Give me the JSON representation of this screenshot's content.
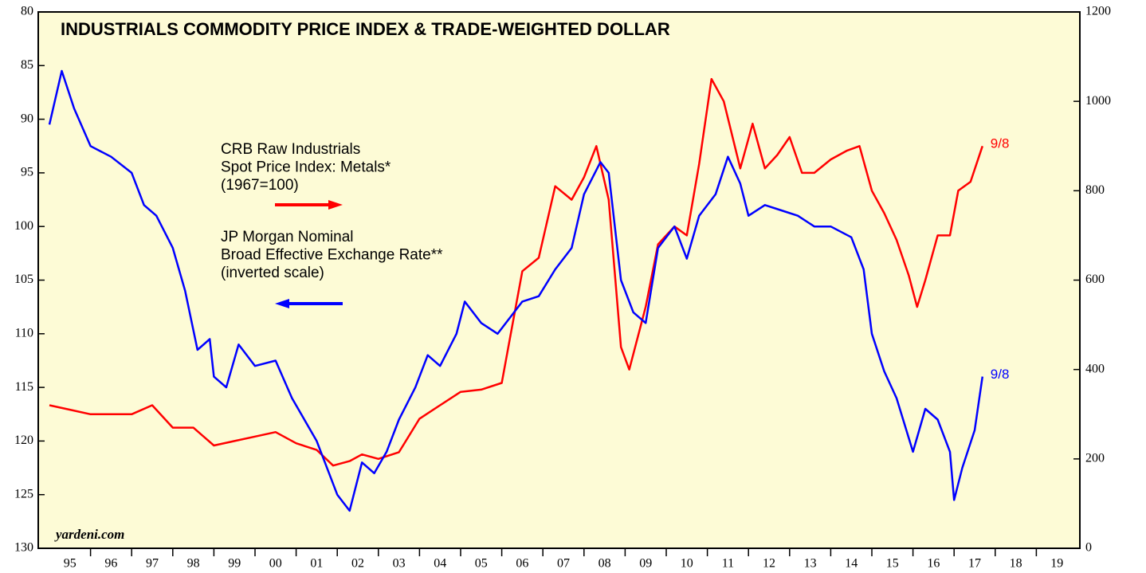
{
  "chart_data": {
    "type": "line",
    "title": "INDUSTRIALS COMMODITY PRICE INDEX & TRADE-WEIGHTED DOLLAR",
    "source": "yardeni.com",
    "xlim": [
      1995,
      2020
    ],
    "xticks": [
      {
        "value": 1995,
        "label": "95"
      },
      {
        "value": 1996,
        "label": "96"
      },
      {
        "value": 1997,
        "label": "97"
      },
      {
        "value": 1998,
        "label": "98"
      },
      {
        "value": 1999,
        "label": "99"
      },
      {
        "value": 2000,
        "label": "00"
      },
      {
        "value": 2001,
        "label": "01"
      },
      {
        "value": 2002,
        "label": "02"
      },
      {
        "value": 2003,
        "label": "03"
      },
      {
        "value": 2004,
        "label": "04"
      },
      {
        "value": 2005,
        "label": "05"
      },
      {
        "value": 2006,
        "label": "06"
      },
      {
        "value": 2007,
        "label": "07"
      },
      {
        "value": 2008,
        "label": "08"
      },
      {
        "value": 2009,
        "label": "09"
      },
      {
        "value": 2010,
        "label": "10"
      },
      {
        "value": 2011,
        "label": "11"
      },
      {
        "value": 2012,
        "label": "12"
      },
      {
        "value": 2013,
        "label": "13"
      },
      {
        "value": 2014,
        "label": "14"
      },
      {
        "value": 2015,
        "label": "15"
      },
      {
        "value": 2016,
        "label": "16"
      },
      {
        "value": 2017,
        "label": "17"
      },
      {
        "value": 2018,
        "label": "18"
      },
      {
        "value": 2019,
        "label": "19"
      }
    ],
    "ylim": [
      130,
      80
    ],
    "yticks": [
      80,
      85,
      90,
      95,
      100,
      105,
      110,
      115,
      120,
      125,
      130
    ],
    "y_inverted": true,
    "y2lim": [
      0,
      1200
    ],
    "y2ticks": [
      0,
      200,
      400,
      600,
      800,
      1000,
      1200
    ],
    "series": [
      {
        "label": [
          "CRB Raw Industrials",
          "Spot Price Index: Metals*",
          "(1967=100)"
        ],
        "color": "#ff0000",
        "axis": "y2",
        "end_label": "9/8",
        "x": [
          1995.0,
          1995.5,
          1996.0,
          1997.0,
          1997.5,
          1998.0,
          1998.5,
          1999.0,
          1999.5,
          2000.0,
          2000.5,
          2001.0,
          2001.5,
          2001.9,
          2002.3,
          2002.6,
          2003.0,
          2003.5,
          2004.0,
          2004.5,
          2005.0,
          2005.5,
          2006.0,
          2006.2,
          2006.5,
          2006.9,
          2007.3,
          2007.7,
          2008.0,
          2008.3,
          2008.6,
          2008.9,
          2009.1,
          2009.5,
          2009.8,
          2010.2,
          2010.5,
          2010.8,
          2011.1,
          2011.4,
          2011.8,
          2012.1,
          2012.4,
          2012.7,
          2013.0,
          2013.3,
          2013.6,
          2014.0,
          2014.4,
          2014.7,
          2015.0,
          2015.3,
          2015.6,
          2015.9,
          2016.1,
          2016.3,
          2016.6,
          2016.9,
          2017.1,
          2017.4,
          2017.69
        ],
        "values": [
          320,
          310,
          300,
          300,
          320,
          270,
          270,
          230,
          240,
          250,
          260,
          235,
          220,
          185,
          195,
          210,
          200,
          215,
          290,
          320,
          350,
          355,
          370,
          470,
          620,
          650,
          810,
          780,
          830,
          900,
          780,
          450,
          400,
          540,
          680,
          720,
          700,
          860,
          1050,
          1000,
          850,
          950,
          850,
          880,
          920,
          840,
          840,
          870,
          890,
          900,
          800,
          750,
          690,
          610,
          540,
          600,
          700,
          700,
          800,
          820,
          900
        ]
      },
      {
        "label": [
          "JP Morgan Nominal",
          "Broad Effective Exchange Rate**",
          "(inverted scale)"
        ],
        "color": "#0000ff",
        "axis": "y",
        "end_label": "9/8",
        "x": [
          1995.0,
          1995.3,
          1995.6,
          1996.0,
          1996.5,
          1997.0,
          1997.3,
          1997.6,
          1998.0,
          1998.3,
          1998.6,
          1998.9,
          1999.0,
          1999.3,
          1999.6,
          2000.0,
          2000.5,
          2000.9,
          2001.2,
          2001.5,
          2001.8,
          2002.0,
          2002.3,
          2002.6,
          2002.9,
          2003.2,
          2003.5,
          2003.9,
          2004.2,
          2004.5,
          2004.9,
          2005.1,
          2005.5,
          2005.9,
          2006.2,
          2006.5,
          2006.9,
          2007.3,
          2007.7,
          2008.0,
          2008.4,
          2008.6,
          2008.9,
          2009.2,
          2009.5,
          2009.8,
          2010.2,
          2010.5,
          2010.8,
          2011.2,
          2011.5,
          2011.8,
          2012.0,
          2012.4,
          2012.8,
          2013.2,
          2013.6,
          2014.0,
          2014.5,
          2014.8,
          2015.0,
          2015.3,
          2015.6,
          2016.0,
          2016.3,
          2016.6,
          2016.9,
          2017.0,
          2017.2,
          2017.5,
          2017.69
        ],
        "values": [
          90.5,
          85.5,
          89,
          92.5,
          93.5,
          95,
          98,
          99,
          102,
          106,
          111.5,
          110.5,
          114,
          115,
          111,
          113,
          112.5,
          116,
          118,
          120,
          123,
          125,
          126.5,
          122,
          123,
          121,
          118,
          115,
          112,
          113,
          110,
          107,
          109,
          110,
          108.5,
          107,
          106.5,
          104,
          102,
          97,
          94,
          95,
          105,
          108,
          109,
          102,
          100,
          103,
          99,
          97,
          93.5,
          96,
          99,
          98,
          98.5,
          99,
          100,
          100,
          101,
          104,
          110,
          113.5,
          116,
          121,
          117,
          118,
          121,
          125.5,
          122.5,
          119,
          114
        ]
      }
    ]
  }
}
